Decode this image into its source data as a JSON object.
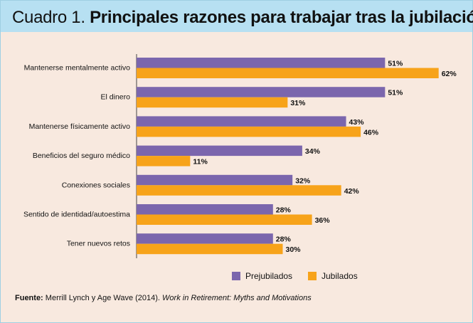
{
  "header": {
    "prefix": "Cuadro 1.",
    "title": "Principales razones para trabajar tras la jubilación"
  },
  "footer": {
    "label": "Fuente:",
    "text": "Merrill Lynch y Age Wave (2014). ",
    "italic": "Work in Retirement: Myths and Motivations"
  },
  "colors": {
    "prejubilados": "#7b66ad",
    "jubilados": "#f7a31a",
    "background": "#f8e9df",
    "header": "#b7e0f2"
  },
  "chart_data": {
    "type": "bar",
    "orientation": "horizontal",
    "title": "Principales razones para trabajar tras la jubilación",
    "categories": [
      "Mantenerse mentalmente activo",
      "El dinero",
      "Mantenerse físicamente activo",
      "Beneficios del seguro médico",
      "Conexiones sociales",
      "Sentido de identidad/autoestima",
      "Tener nuevos retos"
    ],
    "series": [
      {
        "name": "Prejubilados",
        "values": [
          51,
          51,
          43,
          34,
          32,
          28,
          28
        ]
      },
      {
        "name": "Jubilados",
        "values": [
          62,
          31,
          46,
          11,
          42,
          36,
          30
        ]
      }
    ],
    "value_suffix": "%",
    "xlim": [
      0,
      100
    ],
    "legend": "bottom",
    "grid": false
  }
}
